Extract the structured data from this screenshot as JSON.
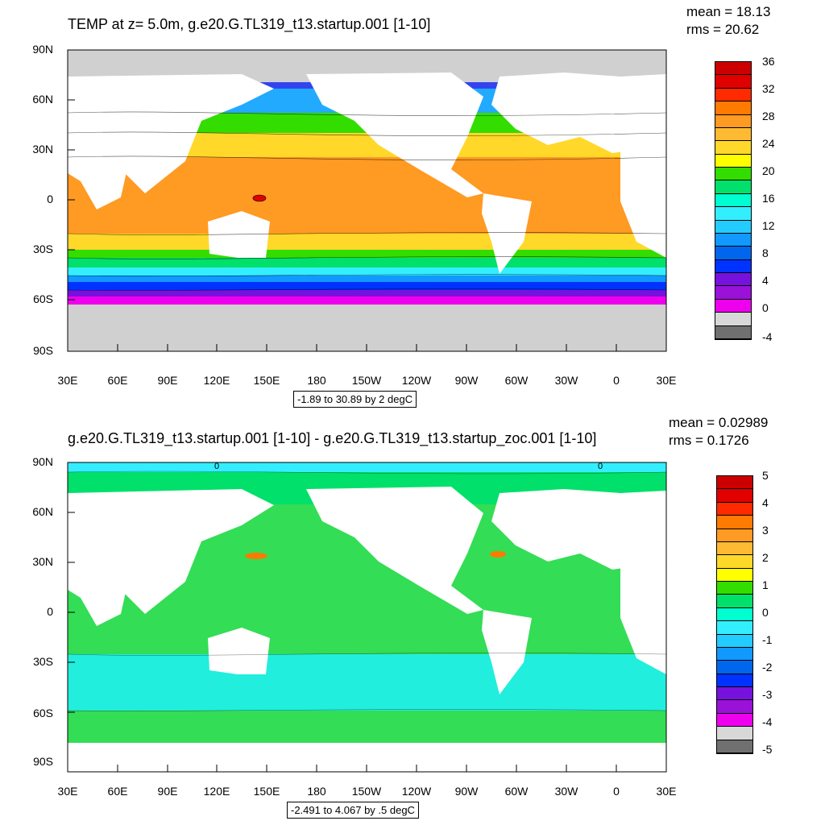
{
  "top": {
    "title": "TEMP at z=   5.0m, g.e20.G.TL319_t13.startup.001 [1-10]",
    "mean": "mean = 18.13",
    "rms": "rms = 20.62",
    "range": "-1.89 to 30.89 by 2 degC",
    "colorbar_labels": [
      "36",
      "32",
      "28",
      "24",
      "20",
      "16",
      "12",
      "8",
      "4",
      "0",
      "-4"
    ],
    "colorbar_colors": [
      "#cc0000",
      "#e00000",
      "#ff2a00",
      "#ff7a00",
      "#ff9a22",
      "#ffba33",
      "#ffd82a",
      "#ffff00",
      "#33dd00",
      "#00e06a",
      "#00ffd0",
      "#33eeff",
      "#22ccff",
      "#1199ff",
      "#0066ee",
      "#0033ff",
      "#7711dd",
      "#9a11d8",
      "#ee00ee",
      "#d8d8d8",
      "#707070"
    ]
  },
  "bottom": {
    "title": "g.e20.G.TL319_t13.startup.001 [1-10] - g.e20.G.TL319_t13.startup_zoc.001 [1-10]",
    "mean": "mean = 0.02989",
    "rms": "rms = 0.1726",
    "range": "-2.491 to 4.067 by .5 degC",
    "colorbar_labels": [
      "5",
      "4",
      "3",
      "2",
      "1",
      "0",
      "-1",
      "-2",
      "-3",
      "-4",
      "-5"
    ],
    "colorbar_colors": [
      "#cc0000",
      "#e00000",
      "#ff2a00",
      "#ff7a00",
      "#ff9a22",
      "#ffba33",
      "#ffd82a",
      "#ffff00",
      "#33dd00",
      "#00e06a",
      "#00ffd0",
      "#33eeff",
      "#22ccff",
      "#1199ff",
      "#0066ee",
      "#0033ff",
      "#7711dd",
      "#9a11d8",
      "#ee00ee",
      "#d8d8d8",
      "#707070"
    ]
  },
  "lat_labels": [
    "90N",
    "60N",
    "30N",
    "0",
    "30S",
    "60S",
    "90S"
  ],
  "lon_labels": [
    "30E",
    "60E",
    "90E",
    "120E",
    "150E",
    "180",
    "150W",
    "120W",
    "90W",
    "60W",
    "30W",
    "0",
    "30E"
  ],
  "contour_zero_label": "0"
}
